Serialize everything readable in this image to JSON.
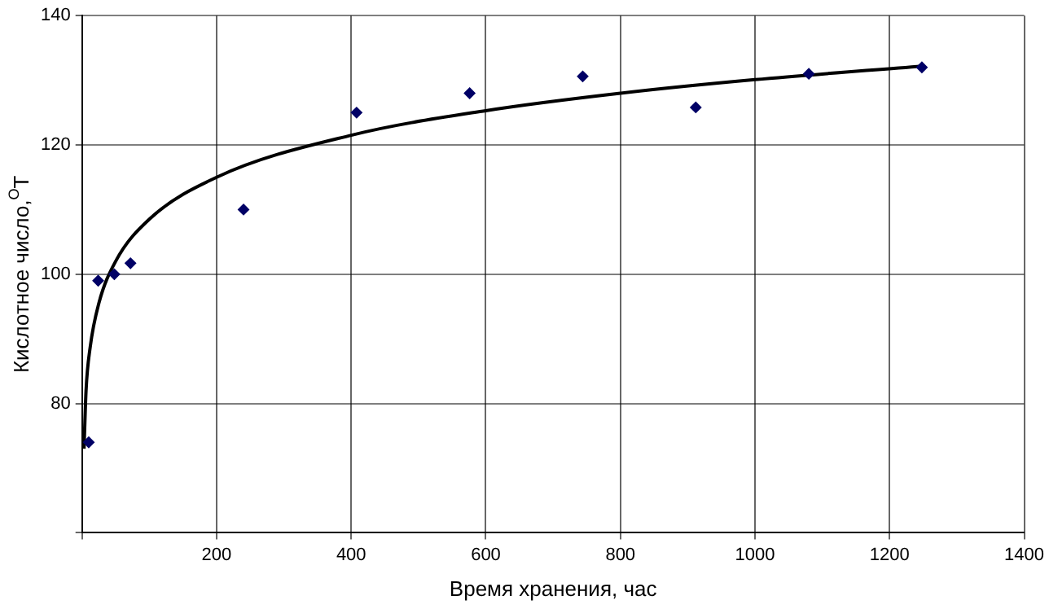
{
  "chart_data": {
    "type": "scatter",
    "xlabel": "Время хранения, час",
    "ylabel": "Кислотное число,$^{O}$Т",
    "xlim": [
      0,
      1400
    ],
    "xticks": [
      {
        "value": 0,
        "label": null
      },
      200,
      400,
      600,
      800,
      1000,
      1200,
      1400
    ],
    "ylim": [
      60,
      140
    ],
    "yticks": [
      {
        "value": 60,
        "label": null
      },
      80,
      100,
      120,
      140
    ],
    "grid": true,
    "legend": false,
    "series": [
      {
        "type": "scatter",
        "color": "#000066",
        "marker": "diamond",
        "x": [
          10,
          24,
          48,
          72,
          240,
          408,
          576,
          744,
          912,
          1080,
          1248
        ],
        "values": [
          74,
          99,
          100,
          101.7,
          110,
          125,
          128,
          130.6,
          125.8,
          131,
          132
        ]
      },
      {
        "type": "line",
        "color": "#000000",
        "marker": "none",
        "line_style": "solid",
        "x": [
          3,
          6,
          12,
          25,
          50,
          100,
          200,
          400,
          600,
          800,
          1000,
          1248
        ],
        "values": [
          73,
          82,
          88.6,
          95.5,
          102,
          108.5,
          115,
          121.5,
          125.3,
          128,
          130.1,
          132.2
        ]
      }
    ]
  }
}
